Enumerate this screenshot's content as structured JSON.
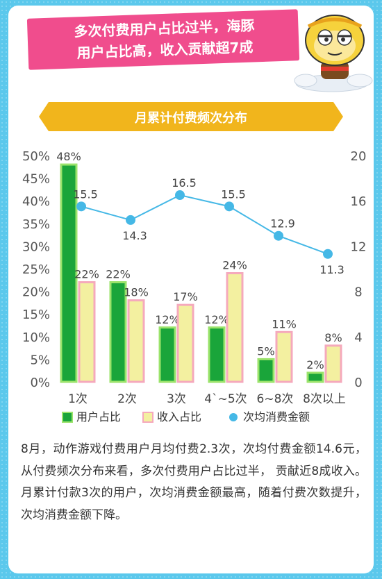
{
  "banner": {
    "line1": "多次付费用户占比过半，海豚",
    "line2": "用户占比高，收入贡献超7成"
  },
  "section_title": "月累计付费频次分布",
  "chart_data": {
    "type": "bar",
    "categories": [
      "1次",
      "2次",
      "3次",
      "4`~5次",
      "6~8次",
      "8次以上"
    ],
    "series": [
      {
        "name": "用户占比",
        "type": "bar",
        "axis": "left",
        "values": [
          48,
          22,
          12,
          12,
          5,
          2
        ],
        "labels": [
          "48%",
          "22%",
          "12%",
          "12%",
          "5%",
          "2%"
        ],
        "color": "#1aa53a"
      },
      {
        "name": "收入占比",
        "type": "bar",
        "axis": "left",
        "values": [
          22,
          18,
          17,
          24,
          11,
          8
        ],
        "labels": [
          "22%",
          "18%",
          "17%",
          "24%",
          "11%",
          "8%"
        ],
        "color": "#f3f0a0"
      },
      {
        "name": "次均消费金额",
        "type": "line",
        "axis": "right",
        "values": [
          15.5,
          14.3,
          16.5,
          15.5,
          12.9,
          11.3
        ],
        "labels": [
          "15.5",
          "14.3",
          "16.5",
          "15.5",
          "12.9",
          "11.3"
        ],
        "color": "#45b8e6"
      }
    ],
    "left_ticks": [
      "0%",
      "5%",
      "10%",
      "15%",
      "20%",
      "25%",
      "30%",
      "35%",
      "40%",
      "45%",
      "50%"
    ],
    "right_ticks": [
      "0",
      "4",
      "8",
      "12",
      "16",
      "20"
    ],
    "ylim_left": [
      0,
      50
    ],
    "ylim_right": [
      0,
      20
    ],
    "grid": false,
    "legend": "bottom"
  },
  "description": "8月，动作游戏付费用户月均付费2.3次，次均付费金额14.6元，从付费频次分布来看，多次付费用户占比过半， 贡献近8成收入。月累计付款3次的用户，次均消费金额最高，随着付费次数提升，次均消费金额下降。"
}
